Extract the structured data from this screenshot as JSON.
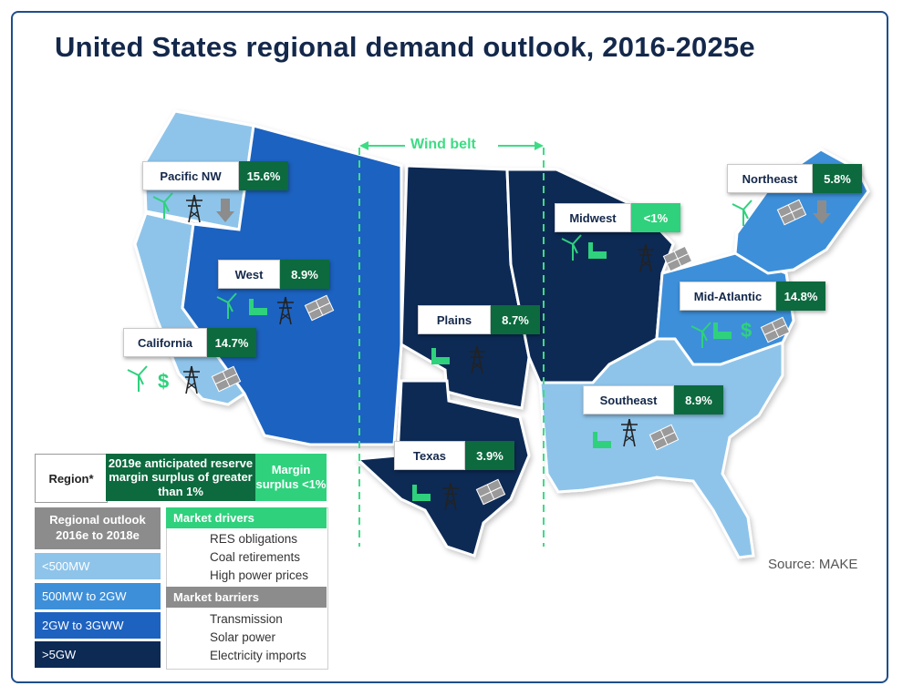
{
  "title": "United States regional demand outlook, 2016-2025e",
  "wind_belt_label": "Wind belt",
  "source": "Source: MAKE",
  "colors": {
    "lt500": "#8ec4ea",
    "500to2": "#3e8fd9",
    "2to3": "#1e62c0",
    "gt5": "#0d2a55",
    "surplus_gt1": "#0c6a3e",
    "surplus_lt1": "#2fd17d",
    "icon_green": "#2fd17d",
    "wind_belt": "#3ddc84"
  },
  "regions": [
    {
      "name": "Pacific NW",
      "value": "15.6%",
      "surplus": "gt1",
      "tier": "lt500",
      "drivers": [
        "res"
      ],
      "barriers": [
        "transmission",
        "imports"
      ]
    },
    {
      "name": "California",
      "value": "14.7%",
      "surplus": "gt1",
      "tier": "lt500",
      "drivers": [
        "res",
        "prices"
      ],
      "barriers": [
        "transmission",
        "solar"
      ]
    },
    {
      "name": "West",
      "value": "8.9%",
      "surplus": "gt1",
      "tier": "2to3",
      "drivers": [
        "res",
        "coal"
      ],
      "barriers": [
        "transmission",
        "solar"
      ]
    },
    {
      "name": "Plains",
      "value": "8.7%",
      "surplus": "gt1",
      "tier": "gt5",
      "drivers": [
        "coal"
      ],
      "barriers": [
        "transmission"
      ]
    },
    {
      "name": "Texas",
      "value": "3.9%",
      "surplus": "gt1",
      "tier": "gt5",
      "drivers": [
        "coal"
      ],
      "barriers": [
        "transmission",
        "solar"
      ]
    },
    {
      "name": "Midwest",
      "value": "<1%",
      "surplus": "lt1",
      "tier": "gt5",
      "drivers": [
        "res",
        "coal"
      ],
      "barriers": [
        "transmission",
        "solar"
      ]
    },
    {
      "name": "Northeast",
      "value": "5.8%",
      "surplus": "gt1",
      "tier": "500to2",
      "drivers": [
        "res"
      ],
      "barriers": [
        "solar",
        "imports"
      ]
    },
    {
      "name": "Mid-Atlantic",
      "value": "14.8%",
      "surplus": "gt1",
      "tier": "500to2",
      "drivers": [
        "res",
        "coal",
        "prices"
      ],
      "barriers": [
        "solar"
      ]
    },
    {
      "name": "Southeast",
      "value": "8.9%",
      "surplus": "gt1",
      "tier": "lt500",
      "drivers": [
        "coal"
      ],
      "barriers": [
        "transmission",
        "solar"
      ]
    }
  ],
  "legend": {
    "region_header": "Region*",
    "surplus_gt1": "2019e anticipated reserve margin surplus of greater than 1%",
    "surplus_lt1": "Margin surplus <1%",
    "outlook_header": "Regional outlook 2016e to 2018e",
    "outlook_rows": [
      "<500MW",
      "500MW to 2GW",
      "2GW to 3GWW",
      ">5GW"
    ],
    "drivers_header": "Market drivers",
    "drivers": [
      "RES obligations",
      "Coal retirements",
      "High power prices"
    ],
    "barriers_header": "Market barriers",
    "barriers": [
      "Transmission",
      "Solar power",
      "Electricity imports"
    ]
  }
}
